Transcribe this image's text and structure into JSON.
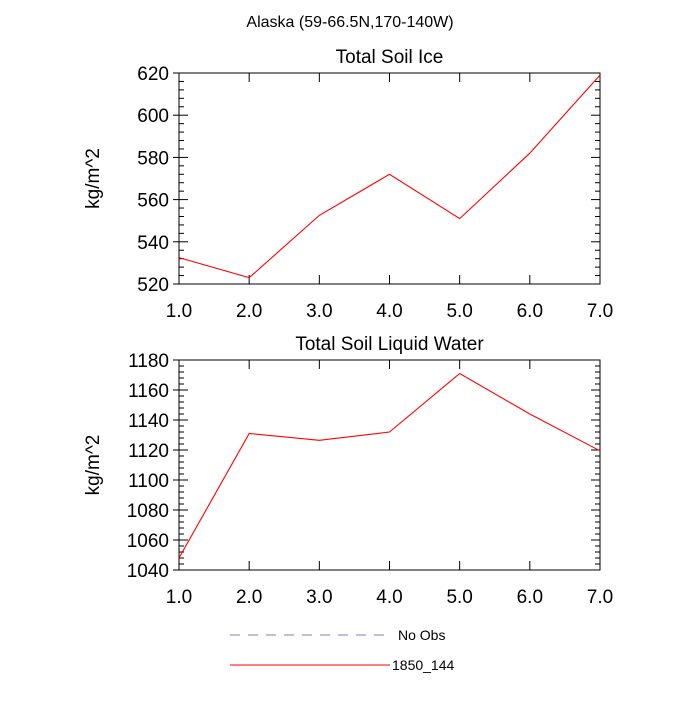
{
  "figure_title": "Alaska (59-66.5N,170-140W)",
  "legend": {
    "entries": [
      {
        "label": "No Obs",
        "color": "#7f7fb0",
        "style": "dashed"
      },
      {
        "label": "1850_144",
        "color": "#ff0000",
        "style": "solid"
      }
    ]
  },
  "chart_data": [
    {
      "type": "line",
      "title": "Total Soil Ice",
      "xlabel": "",
      "ylabel": "kg/m^2",
      "x": [
        1,
        2,
        3,
        4,
        5,
        6,
        7
      ],
      "xlim": [
        1,
        7
      ],
      "ylim": [
        520,
        620
      ],
      "xticks": [
        1,
        2,
        3,
        4,
        5,
        6,
        7
      ],
      "xtick_labels": [
        "1.0",
        "2.0",
        "3.0",
        "4.0",
        "5.0",
        "6.0",
        "7.0"
      ],
      "yticks": [
        520,
        540,
        560,
        580,
        600,
        620
      ],
      "ytick_labels": [
        "520",
        "540",
        "560",
        "580",
        "600",
        "620"
      ],
      "grid": false,
      "series": [
        {
          "name": "1850_144",
          "color": "#ff0000",
          "values": [
            532.5,
            523,
            552.5,
            572,
            551,
            582,
            619
          ]
        }
      ]
    },
    {
      "type": "line",
      "title": "Total Soil Liquid Water",
      "xlabel": "",
      "ylabel": "kg/m^2",
      "x": [
        1,
        2,
        3,
        4,
        5,
        6,
        7
      ],
      "xlim": [
        1,
        7
      ],
      "ylim": [
        1040,
        1180
      ],
      "xticks": [
        1,
        2,
        3,
        4,
        5,
        6,
        7
      ],
      "xtick_labels": [
        "1.0",
        "2.0",
        "3.0",
        "4.0",
        "5.0",
        "6.0",
        "7.0"
      ],
      "yticks": [
        1040,
        1060,
        1080,
        1100,
        1120,
        1140,
        1160,
        1180
      ],
      "ytick_labels": [
        "1040",
        "1060",
        "1080",
        "1100",
        "1120",
        "1140",
        "1160",
        "1180"
      ],
      "grid": false,
      "series": [
        {
          "name": "1850_144",
          "color": "#ff0000",
          "values": [
            1048,
            1131,
            1126.5,
            1132,
            1171,
            1144,
            1119.5
          ]
        }
      ]
    }
  ]
}
